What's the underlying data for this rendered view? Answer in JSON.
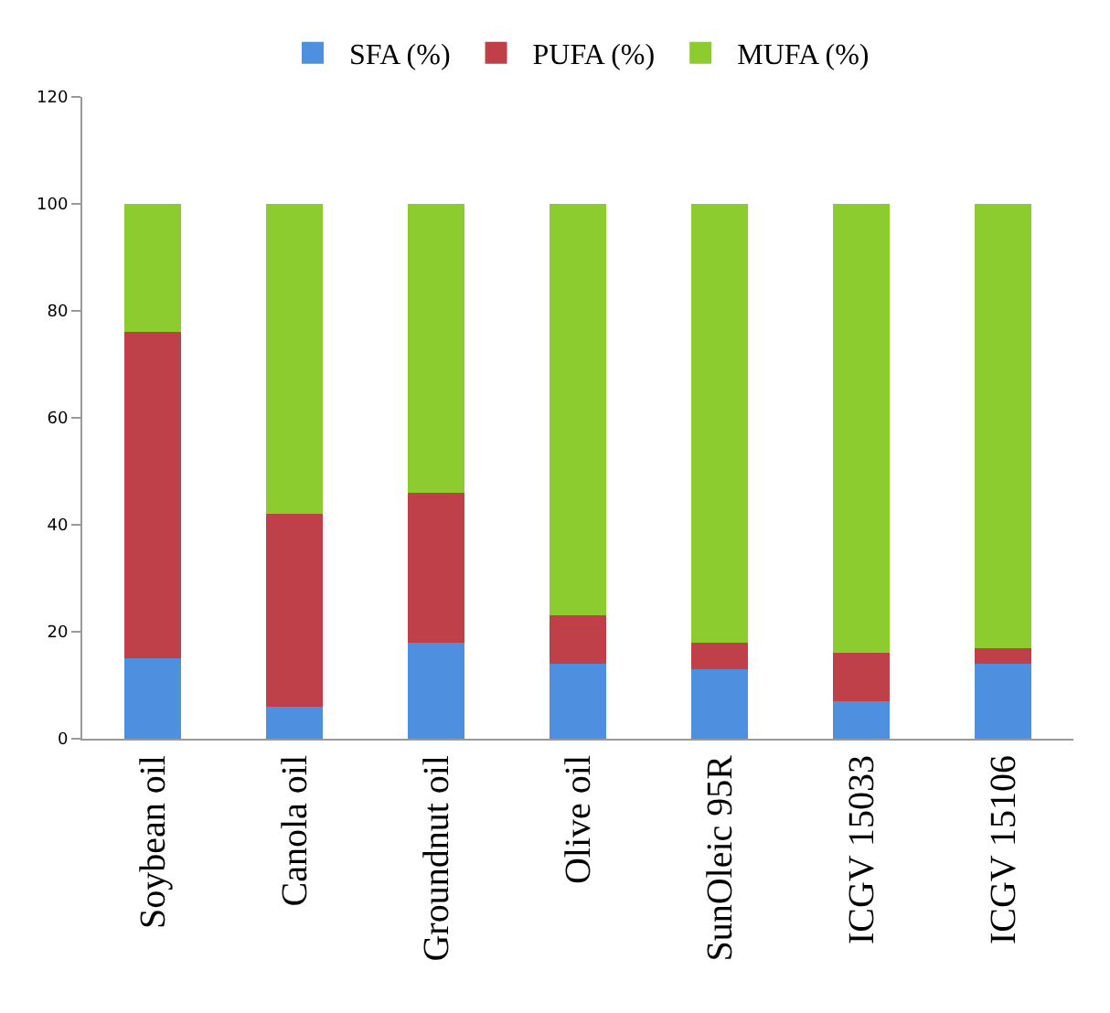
{
  "chart_data": {
    "type": "bar",
    "stacked": true,
    "categories": [
      "Soybean oil",
      "Canola oil",
      "Groundnut oil",
      "Olive oil",
      "SunOleic 95R",
      "ICGV 15033",
      "ICGV 15106"
    ],
    "series": [
      {
        "name": "SFA (%)",
        "color": "#4f8fe0",
        "values": [
          15,
          6,
          18,
          14,
          13,
          7,
          14
        ]
      },
      {
        "name": "PUFA (%)",
        "color": "#c0404a",
        "values": [
          61,
          36,
          28,
          9,
          5,
          9,
          3
        ]
      },
      {
        "name": "MUFA (%)",
        "color": "#8ccc2e",
        "values": [
          24,
          58,
          54,
          77,
          82,
          84,
          83
        ]
      }
    ],
    "ylim": [
      0,
      120
    ],
    "yticks": [
      0,
      20,
      40,
      60,
      80,
      100,
      120
    ],
    "legend": "top"
  }
}
